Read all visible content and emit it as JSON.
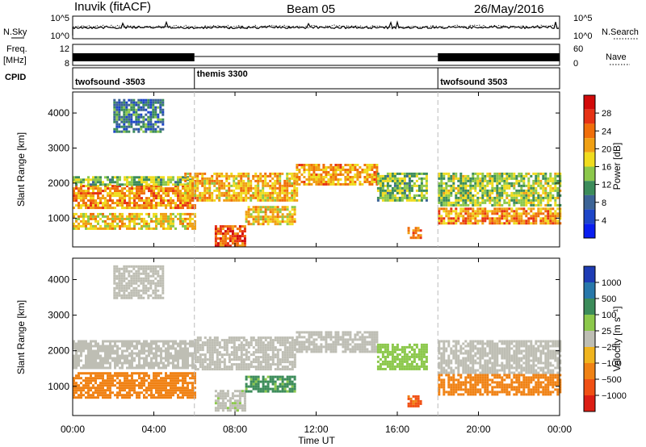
{
  "header": {
    "station": "Inuvik (fitACF)",
    "beam": "Beam 05",
    "date": "26/May/2016"
  },
  "side_labels": {
    "nsky": "N.Sky",
    "nsearch": "N.Search",
    "freq_line1": "Freq.",
    "freq_line2": "[MHz]",
    "nave": "Nave",
    "cpid": "CPID"
  },
  "noise_axis": {
    "left_top": "10^5",
    "left_bottom": "10^0",
    "right_top": "10^5",
    "right_bottom": "10^0"
  },
  "freq_axis": {
    "left_top": "12",
    "left_bottom": "8",
    "right_top": "60",
    "right_bottom": "0"
  },
  "cpid_segments": [
    {
      "label": "twofsound -3503",
      "start_hr": 0,
      "end_hr": 6
    },
    {
      "label": "themis 3300",
      "start_hr": 6,
      "end_hr": 18
    },
    {
      "label": "twofsound 3503",
      "start_hr": 18,
      "end_hr": 24
    }
  ],
  "time_axis": {
    "label": "Time UT",
    "ticks": [
      "00:00",
      "04:00",
      "08:00",
      "12:00",
      "16:00",
      "20:00",
      "00:00"
    ],
    "tick_hours": [
      0,
      4,
      8,
      12,
      16,
      20,
      24
    ]
  },
  "range_axis": {
    "label": "Slant Range [km]",
    "ticks": [
      "1000",
      "2000",
      "3000",
      "4000"
    ],
    "tick_values": [
      1000,
      2000,
      3000,
      4000
    ],
    "min": 180,
    "max": 4600
  },
  "power_colorbar": {
    "label": "Power [dB]",
    "ticks": [
      "4",
      "8",
      "12",
      "16",
      "20",
      "24",
      "28"
    ],
    "colors": [
      "#0a1ef0",
      "#1e46c8",
      "#3c6496",
      "#3c8c5a",
      "#8cc84b",
      "#f0dc1e",
      "#f0a014",
      "#f06e0a",
      "#e63214",
      "#d20a0a"
    ]
  },
  "velocity_colorbar": {
    "label": "Velocity [m s⁻¹]",
    "ticks": [
      "1000",
      "500",
      "100",
      "25",
      "−25",
      "−100",
      "−500",
      "−1000"
    ],
    "colors": [
      "#1e3cb4",
      "#2878aa",
      "#3c8c5a",
      "#8cc84b",
      "#bebeb4",
      "#f0b41e",
      "#f08214",
      "#f05014",
      "#dc1e14"
    ]
  },
  "chart_data": [
    {
      "type": "heatmap",
      "panel": "power",
      "xlabel": "Time UT",
      "ylabel": "Slant Range [km]",
      "xlim": [
        0,
        24
      ],
      "ylim": [
        180,
        4600
      ],
      "colorbar_label": "Power [dB]",
      "colorbar_range": [
        0,
        32
      ],
      "echo_regions": [
        {
          "t0": 0.0,
          "t1": 6.0,
          "r0": 1300,
          "r1": 1950,
          "power": 22
        },
        {
          "t0": 0.0,
          "t1": 6.0,
          "r0": 1950,
          "r1": 2200,
          "power": 14
        },
        {
          "t0": 0.0,
          "t1": 6.0,
          "r0": 700,
          "r1": 1150,
          "power": 18
        },
        {
          "t0": 2.0,
          "t1": 4.5,
          "r0": 3500,
          "r1": 4400,
          "power": 9
        },
        {
          "t0": 5.5,
          "t1": 11.0,
          "r0": 1500,
          "r1": 2300,
          "power": 20
        },
        {
          "t0": 7.0,
          "t1": 8.5,
          "r0": 200,
          "r1": 800,
          "power": 26
        },
        {
          "t0": 8.5,
          "t1": 11.0,
          "r0": 850,
          "r1": 1350,
          "power": 19
        },
        {
          "t0": 11.0,
          "t1": 15.0,
          "r0": 1950,
          "r1": 2550,
          "power": 21
        },
        {
          "t0": 15.0,
          "t1": 17.5,
          "r0": 1500,
          "r1": 2300,
          "power": 14
        },
        {
          "t0": 16.5,
          "t1": 17.2,
          "r0": 450,
          "r1": 750,
          "power": 24
        },
        {
          "t0": 18.0,
          "t1": 24.0,
          "r0": 850,
          "r1": 1300,
          "power": 22
        },
        {
          "t0": 18.0,
          "t1": 24.0,
          "r0": 1350,
          "r1": 2300,
          "power": 15
        }
      ]
    },
    {
      "type": "heatmap",
      "panel": "velocity",
      "xlabel": "Time UT",
      "ylabel": "Slant Range [km]",
      "xlim": [
        0,
        24
      ],
      "ylim": [
        180,
        4600
      ],
      "colorbar_label": "Velocity [m s⁻¹]",
      "colorbar_range": [
        -1000,
        1000
      ],
      "echo_regions": [
        {
          "t0": 0.0,
          "t1": 6.0,
          "r0": 1500,
          "r1": 2300,
          "velocity": 0
        },
        {
          "t0": 0.0,
          "t1": 6.0,
          "r0": 700,
          "r1": 1400,
          "velocity": -300
        },
        {
          "t0": 2.0,
          "t1": 4.5,
          "r0": 3500,
          "r1": 4400,
          "velocity": 0
        },
        {
          "t0": 6.0,
          "t1": 11.0,
          "r0": 1500,
          "r1": 2400,
          "velocity": 0
        },
        {
          "t0": 7.0,
          "t1": 8.5,
          "r0": 300,
          "r1": 900,
          "velocity": 10
        },
        {
          "t0": 8.5,
          "t1": 11.0,
          "r0": 850,
          "r1": 1300,
          "velocity": 200
        },
        {
          "t0": 11.0,
          "t1": 15.0,
          "r0": 1950,
          "r1": 2550,
          "velocity": 0
        },
        {
          "t0": 15.0,
          "t1": 17.5,
          "r0": 1500,
          "r1": 2200,
          "velocity": 60
        },
        {
          "t0": 16.5,
          "t1": 17.2,
          "r0": 450,
          "r1": 750,
          "velocity": -600
        },
        {
          "t0": 18.0,
          "t1": 24.0,
          "r0": 800,
          "r1": 1350,
          "velocity": -250
        },
        {
          "t0": 18.0,
          "t1": 24.0,
          "r0": 1400,
          "r1": 2300,
          "velocity": 0
        }
      ]
    }
  ]
}
